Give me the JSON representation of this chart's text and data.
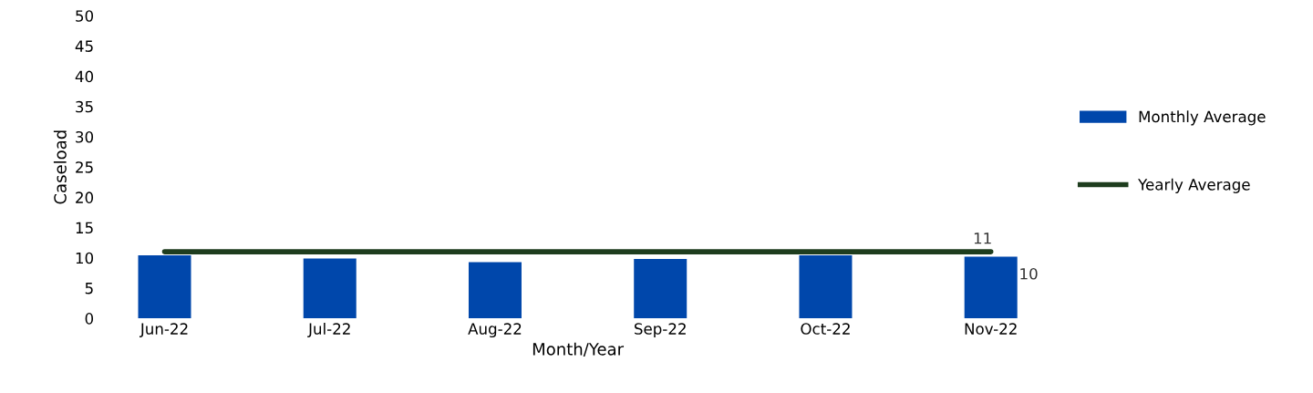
{
  "chart_data": {
    "type": "bar",
    "xlabel": "Month/Year",
    "ylabel": "Caseload",
    "categories": [
      "Jun-22",
      "Jul-22",
      "Aug-22",
      "Sep-22",
      "Oct-22",
      "Nov-22"
    ],
    "series": [
      {
        "name": "Monthly Average",
        "color": "#0047ab",
        "values": [
          10.4,
          9.9,
          9.3,
          9.8,
          10.4,
          10.2
        ],
        "value_labels": [
          null,
          null,
          null,
          null,
          null,
          "10"
        ]
      },
      {
        "name": "Yearly Average",
        "type": "line",
        "color": "#1e3d1e",
        "values": [
          11,
          11,
          11,
          11,
          11,
          11
        ],
        "value_labels": [
          null,
          null,
          null,
          null,
          null,
          "11"
        ]
      }
    ],
    "ylim": [
      0,
      50
    ],
    "yticks": [
      0,
      5,
      10,
      15,
      20,
      25,
      30,
      35,
      40,
      45,
      50
    ],
    "grid": false,
    "legend": "right",
    "marker": "none",
    "line_style": "solid"
  }
}
